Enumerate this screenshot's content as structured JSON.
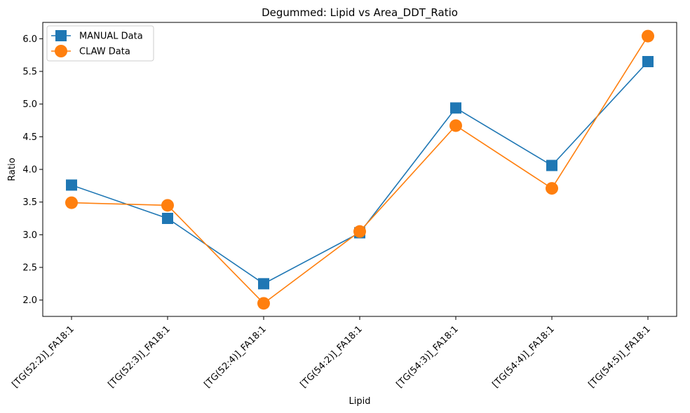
{
  "chart_data": {
    "type": "line",
    "title": "Degummed: Lipid vs Area_DDT_Ratio",
    "xlabel": "Lipid",
    "ylabel": "Ratio",
    "categories": [
      "[TG(52:2)]_FA18:1",
      "[TG(52:3)]_FA18:1",
      "[TG(52:4)]_FA18:1",
      "[TG(54:2)]_FA18:1",
      "[TG(54:3)]_FA18:1",
      "[TG(54:4)]_FA18:1",
      "[TG(54:5)]_FA18:1"
    ],
    "yticks": [
      "2.0",
      "2.5",
      "3.0",
      "3.5",
      "4.0",
      "4.5",
      "5.0",
      "5.5",
      "6.0"
    ],
    "ylim": [
      1.75,
      6.25
    ],
    "grid": false,
    "legend_position": "top-left",
    "series": [
      {
        "name": "MANUAL Data",
        "marker": "square",
        "color": "#1f77b4",
        "values": [
          3.76,
          3.25,
          2.25,
          3.03,
          4.94,
          4.06,
          5.65
        ]
      },
      {
        "name": "CLAW Data",
        "marker": "circle",
        "color": "#ff7f0e",
        "values": [
          3.49,
          3.45,
          1.95,
          3.05,
          4.67,
          3.71,
          6.04
        ]
      }
    ]
  }
}
